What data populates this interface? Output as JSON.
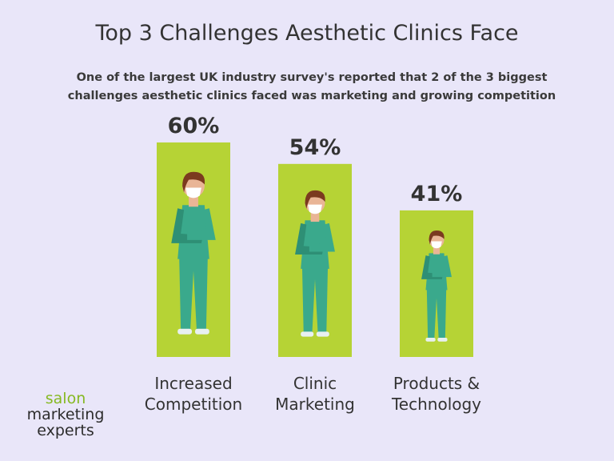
{
  "chart_data": {
    "type": "bar",
    "title": "Top 3 Challenges Aesthetic Clinics Face",
    "subtitle": "One of the largest UK industry survey's reported that 2 of the 3 biggest challenges aesthetic clinics faced was marketing and growing competition",
    "categories": [
      "Increased Competition",
      "Clinic Marketing",
      "Products & Technology"
    ],
    "values": [
      60,
      54,
      41
    ],
    "value_labels": [
      "60%",
      "54%",
      "41%"
    ],
    "color": "#b6d335"
  },
  "logo": {
    "line1": "salon",
    "line2": "marketing",
    "line3": "experts"
  }
}
